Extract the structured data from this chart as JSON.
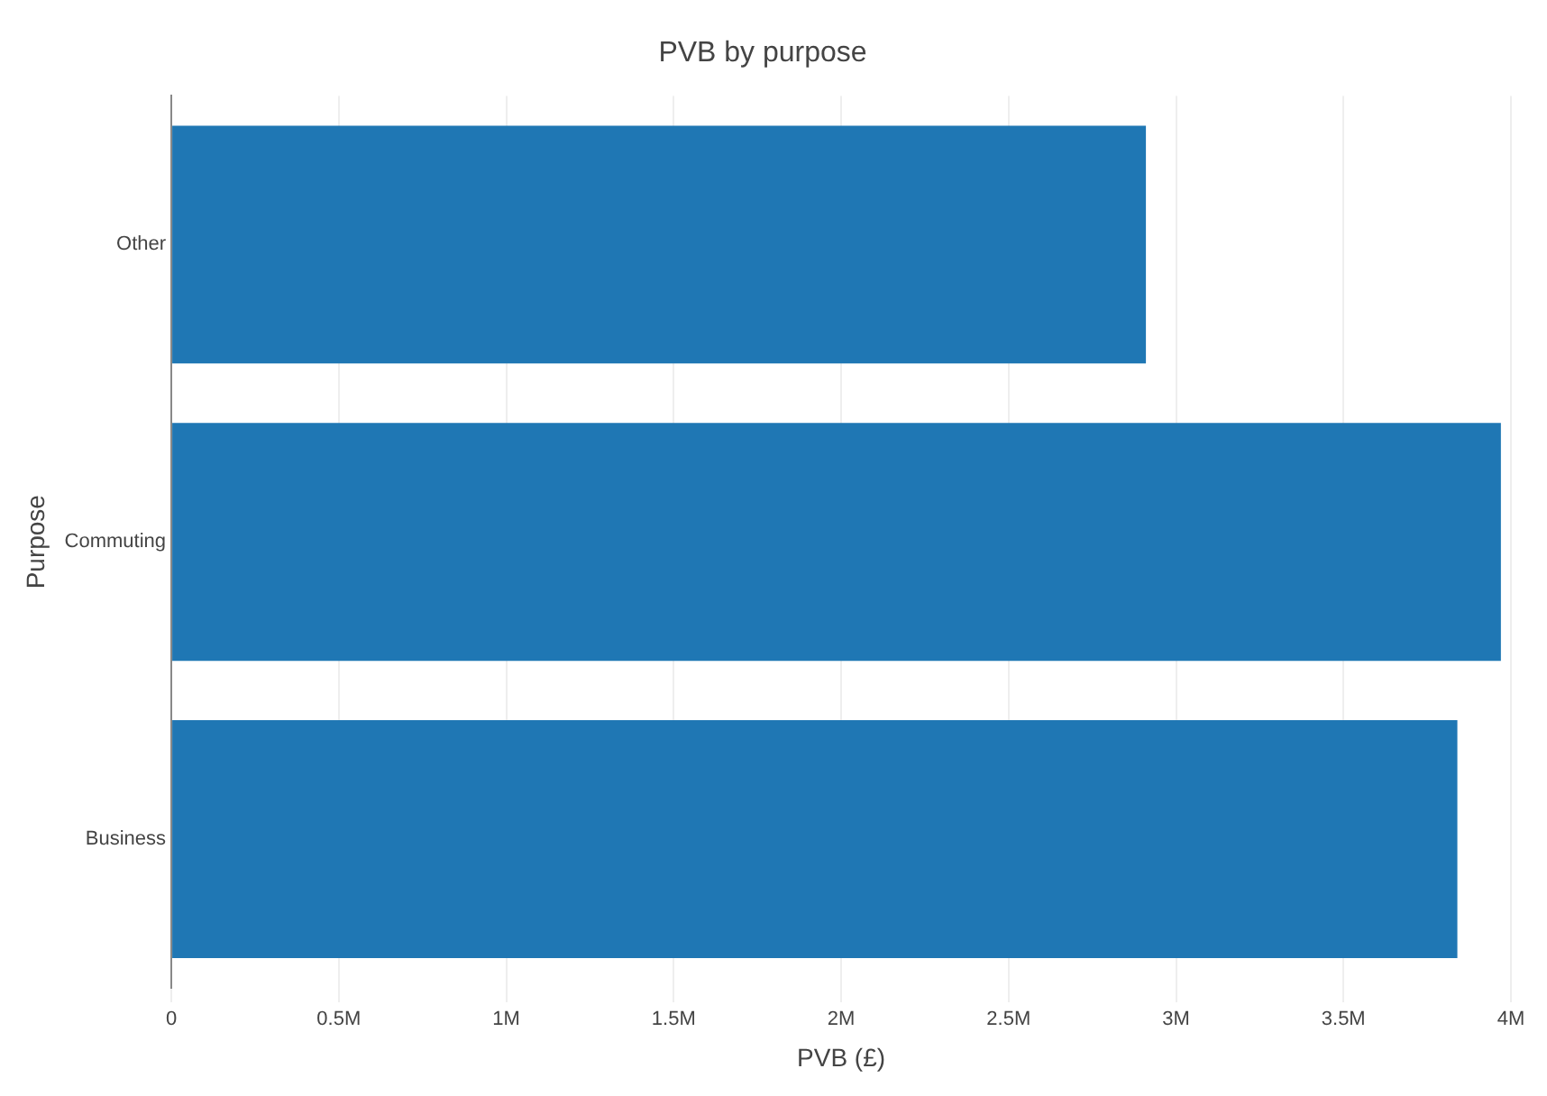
{
  "chart_data": {
    "type": "bar",
    "orientation": "horizontal",
    "title": "PVB by purpose",
    "xlabel": "PVB (£)",
    "ylabel": "Purpose",
    "categories": [
      "Other",
      "Commuting",
      "Business"
    ],
    "values": [
      2910000,
      3970000,
      3840000
    ],
    "color": "#1f77b4",
    "xlim": [
      0,
      4000000
    ],
    "xticks": [
      0,
      {
        "value": 500000,
        "label": "0.5M"
      },
      {
        "value": 1000000,
        "label": "1M"
      },
      {
        "value": 1500000,
        "label": "1.5M"
      },
      {
        "value": 2000000,
        "label": "2M"
      },
      {
        "value": 2500000,
        "label": "2.5M"
      },
      {
        "value": 3000000,
        "label": "3M"
      },
      {
        "value": 3500000,
        "label": "3.5M"
      },
      {
        "value": 4000000,
        "label": "4M"
      }
    ],
    "grid": "x",
    "legend": false
  }
}
